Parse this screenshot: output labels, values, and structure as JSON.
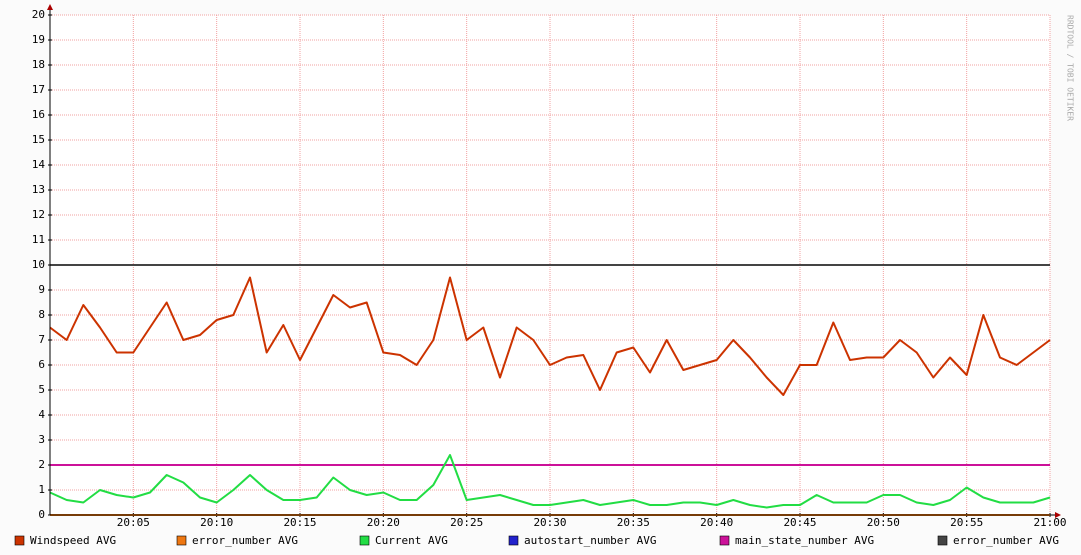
{
  "chart_data": {
    "type": "line",
    "watermark": "RRDTOOL / TOBI OETIKER",
    "x": [
      0,
      1,
      2,
      3,
      4,
      5,
      6,
      7,
      8,
      9,
      10,
      11,
      12,
      13,
      14,
      15,
      16,
      17,
      18,
      19,
      20,
      21,
      22,
      23,
      24,
      25,
      26,
      27,
      28,
      29,
      30,
      31,
      32,
      33,
      34,
      35,
      36,
      37,
      38,
      39,
      40,
      41,
      42,
      43,
      44,
      45,
      46,
      47,
      48,
      49,
      50,
      51,
      52,
      53,
      54,
      55,
      56,
      57,
      58,
      59,
      60
    ],
    "xlim": [
      0,
      60
    ],
    "xticks": [
      {
        "value": 5,
        "label": "20:05"
      },
      {
        "value": 10,
        "label": "20:10"
      },
      {
        "value": 15,
        "label": "20:15"
      },
      {
        "value": 20,
        "label": "20:20"
      },
      {
        "value": 25,
        "label": "20:25"
      },
      {
        "value": 30,
        "label": "20:30"
      },
      {
        "value": 35,
        "label": "20:35"
      },
      {
        "value": 40,
        "label": "20:40"
      },
      {
        "value": 45,
        "label": "20:45"
      },
      {
        "value": 50,
        "label": "20:50"
      },
      {
        "value": 55,
        "label": "20:55"
      },
      {
        "value": 60,
        "label": "21:00"
      }
    ],
    "ylim": [
      0,
      20
    ],
    "yticks": [
      0,
      1,
      2,
      3,
      4,
      5,
      6,
      7,
      8,
      9,
      10,
      11,
      12,
      13,
      14,
      15,
      16,
      17,
      18,
      19,
      20
    ],
    "grid": true,
    "series": [
      {
        "name": "Windspeed AVG",
        "color": "#cc3300",
        "values": [
          7.5,
          7.0,
          8.4,
          7.5,
          6.5,
          6.5,
          7.5,
          8.5,
          7.0,
          7.2,
          7.8,
          8.0,
          9.5,
          6.5,
          7.6,
          6.2,
          7.5,
          8.8,
          8.3,
          8.5,
          6.5,
          6.4,
          6.0,
          7.0,
          9.5,
          7.0,
          7.5,
          5.5,
          7.5,
          7.0,
          6.0,
          6.3,
          6.4,
          5.0,
          6.5,
          6.7,
          5.7,
          7.0,
          5.8,
          6.0,
          6.2,
          7.0,
          6.3,
          5.5,
          4.8,
          6.0,
          6.0,
          7.7,
          6.2,
          6.3,
          6.3,
          7.0,
          6.5,
          5.5,
          6.3,
          5.6,
          8.0,
          6.3,
          6.0,
          6.5,
          7.0
        ]
      },
      {
        "name": "error_number AVG",
        "color": "#ee7711",
        "values": [
          0,
          0,
          0,
          0,
          0,
          0,
          0,
          0,
          0,
          0,
          0,
          0,
          0,
          0,
          0,
          0,
          0,
          0,
          0,
          0,
          0,
          0,
          0,
          0,
          0,
          0,
          0,
          0,
          0,
          0,
          0,
          0,
          0,
          0,
          0,
          0,
          0,
          0,
          0,
          0,
          0,
          0,
          0,
          0,
          0,
          0,
          0,
          0,
          0,
          0,
          0,
          0,
          0,
          0,
          0,
          0,
          0,
          0,
          0,
          0,
          0
        ]
      },
      {
        "name": "Current AVG",
        "color": "#22dd44",
        "values": [
          0.9,
          0.6,
          0.5,
          1.0,
          0.8,
          0.7,
          0.9,
          1.6,
          1.3,
          0.7,
          0.5,
          1.0,
          1.6,
          1.0,
          0.6,
          0.6,
          0.7,
          1.5,
          1.0,
          0.8,
          0.9,
          0.6,
          0.6,
          1.2,
          2.4,
          0.6,
          0.7,
          0.8,
          0.6,
          0.4,
          0.4,
          0.5,
          0.6,
          0.4,
          0.5,
          0.6,
          0.4,
          0.4,
          0.5,
          0.5,
          0.4,
          0.6,
          0.4,
          0.3,
          0.4,
          0.4,
          0.8,
          0.5,
          0.5,
          0.5,
          0.8,
          0.8,
          0.5,
          0.4,
          0.6,
          1.1,
          0.7,
          0.5,
          0.5,
          0.5,
          0.7
        ]
      },
      {
        "name": "autostart_number AVG",
        "color": "#2222cc",
        "values": [
          0,
          0,
          0,
          0,
          0,
          0,
          0,
          0,
          0,
          0,
          0,
          0,
          0,
          0,
          0,
          0,
          0,
          0,
          0,
          0,
          0,
          0,
          0,
          0,
          0,
          0,
          0,
          0,
          0,
          0,
          0,
          0,
          0,
          0,
          0,
          0,
          0,
          0,
          0,
          0,
          0,
          0,
          0,
          0,
          0,
          0,
          0,
          0,
          0,
          0,
          0,
          0,
          0,
          0,
          0,
          0,
          0,
          0,
          0,
          0,
          0
        ]
      },
      {
        "name": "main_state_number AVG",
        "color": "#cc1199",
        "values": [
          2,
          2,
          2,
          2,
          2,
          2,
          2,
          2,
          2,
          2,
          2,
          2,
          2,
          2,
          2,
          2,
          2,
          2,
          2,
          2,
          2,
          2,
          2,
          2,
          2,
          2,
          2,
          2,
          2,
          2,
          2,
          2,
          2,
          2,
          2,
          2,
          2,
          2,
          2,
          2,
          2,
          2,
          2,
          2,
          2,
          2,
          2,
          2,
          2,
          2,
          2,
          2,
          2,
          2,
          2,
          2,
          2,
          2,
          2,
          2,
          2
        ]
      },
      {
        "name": "error_number AVG",
        "color": "#444444",
        "values": [
          10,
          10,
          10,
          10,
          10,
          10,
          10,
          10,
          10,
          10,
          10,
          10,
          10,
          10,
          10,
          10,
          10,
          10,
          10,
          10,
          10,
          10,
          10,
          10,
          10,
          10,
          10,
          10,
          10,
          10,
          10,
          10,
          10,
          10,
          10,
          10,
          10,
          10,
          10,
          10,
          10,
          10,
          10,
          10,
          10,
          10,
          10,
          10,
          10,
          10,
          10,
          10,
          10,
          10,
          10,
          10,
          10,
          10,
          10,
          10,
          10
        ]
      }
    ]
  }
}
